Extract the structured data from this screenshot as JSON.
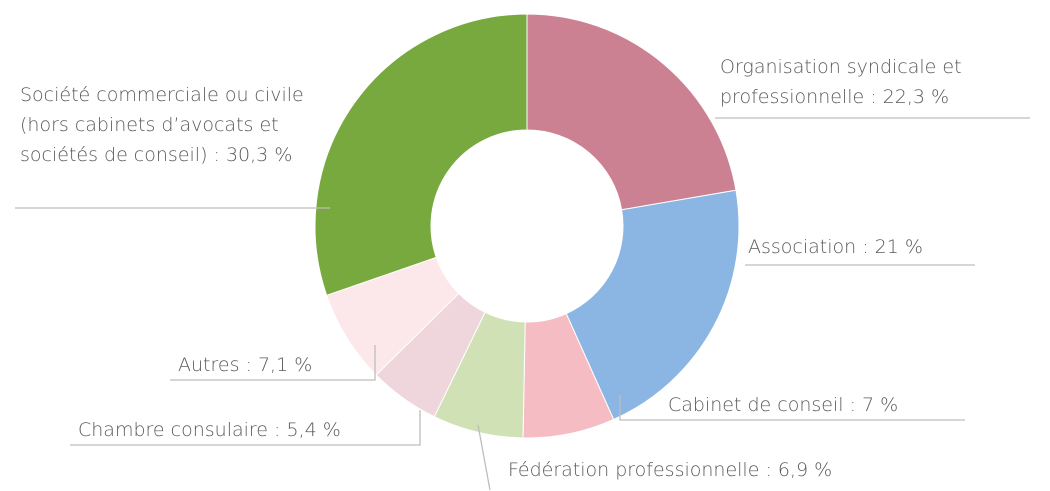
{
  "chart_data": {
    "type": "donut",
    "categories": [
      "Organisation syndicale et professionnelle",
      "Association",
      "Cabinet de conseil",
      "Fédération professionnelle",
      "Chambre consulaire",
      "Autres",
      "Société commerciale ou civile (hors cabinets d’avocats et sociétés de conseil)"
    ],
    "values": [
      22.3,
      21,
      7,
      6.9,
      5.4,
      7.1,
      30.3
    ],
    "value_labels": [
      "22,3 %",
      "21 %",
      "7 %",
      "6,9 %",
      "5,4 %",
      "7,1 %",
      "30,3 %"
    ],
    "label_separator": " : ",
    "colors": [
      "#cc8193",
      "#8bb5e2",
      "#f5bcc3",
      "#d0e1b6",
      "#efd5dc",
      "#fce7ea",
      "#77a93f"
    ]
  }
}
